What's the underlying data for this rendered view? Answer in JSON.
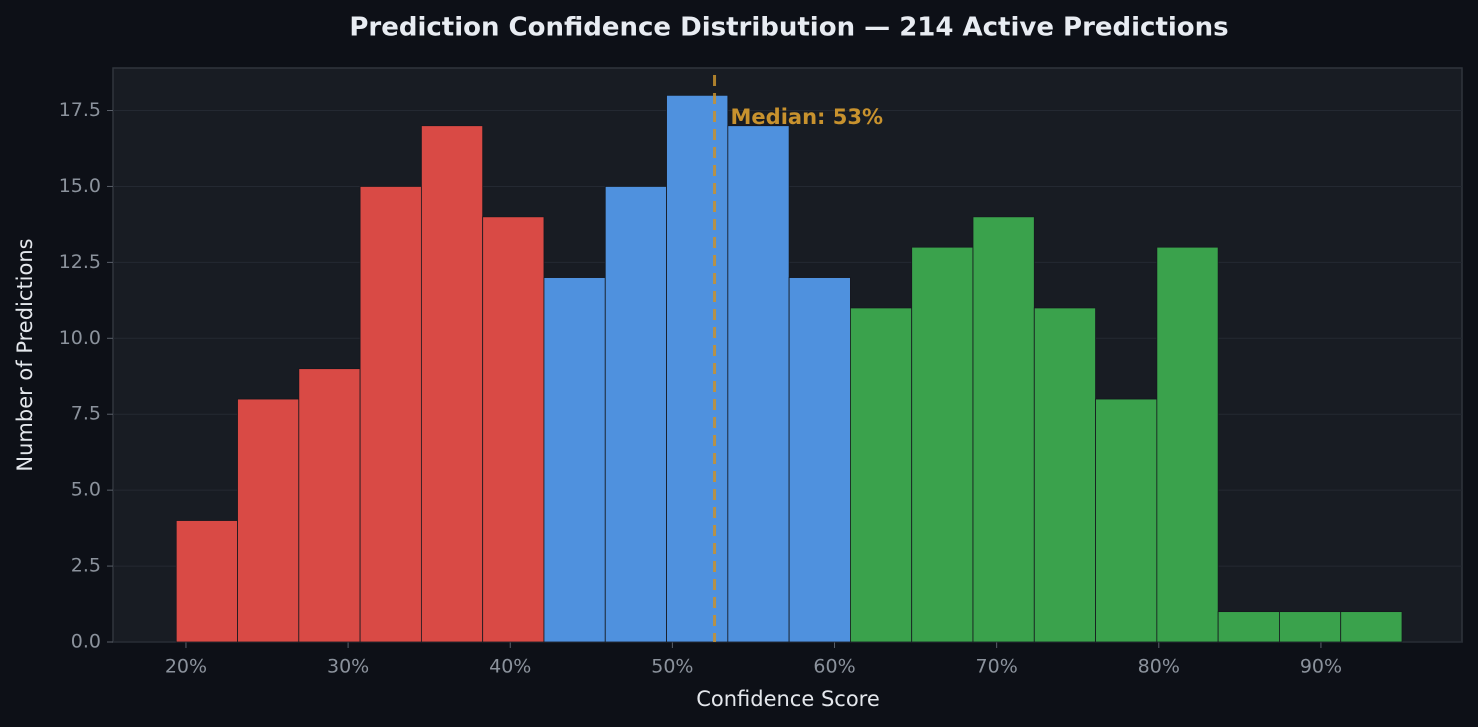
{
  "chart_data": {
    "type": "histogram",
    "title": "Prediction Confidence Distribution — 214 Active Predictions",
    "x_label": "Confidence Score",
    "y_label": "Number of Predictions",
    "bins": [
      19.4,
      23.18,
      26.96,
      30.74,
      34.52,
      38.3,
      42.08,
      45.86,
      49.64,
      53.42,
      57.2,
      60.98,
      64.76,
      68.54,
      72.32,
      76.1,
      79.88,
      83.66,
      87.44,
      91.22,
      95.0
    ],
    "values": [
      4,
      8,
      9,
      15,
      17,
      14,
      12,
      15,
      18,
      17,
      12,
      11,
      13,
      14,
      11,
      8,
      13,
      1,
      1,
      1
    ],
    "bar_colors": [
      "#d94a45",
      "#d94a45",
      "#d94a45",
      "#d94a45",
      "#d94a45",
      "#d94a45",
      "#4f91de",
      "#4f91de",
      "#4f91de",
      "#4f91de",
      "#4f91de",
      "#3aa24c",
      "#3aa24c",
      "#3aa24c",
      "#3aa24c",
      "#3aa24c",
      "#3aa24c",
      "#3aa24c",
      "#3aa24c",
      "#3aa24c"
    ],
    "median": {
      "value": 52.6,
      "label": "Median: 53%",
      "color": "#c8922e"
    },
    "xlim": [
      15.5,
      98.7
    ],
    "ylim": [
      0,
      18.9
    ],
    "xticks": [
      {
        "value": 20,
        "label": "20%"
      },
      {
        "value": 30,
        "label": "30%"
      },
      {
        "value": 40,
        "label": "40%"
      },
      {
        "value": 50,
        "label": "50%"
      },
      {
        "value": 60,
        "label": "60%"
      },
      {
        "value": 70,
        "label": "70%"
      },
      {
        "value": 80,
        "label": "80%"
      },
      {
        "value": 90,
        "label": "90%"
      }
    ],
    "yticks": [
      {
        "value": 0,
        "label": "0.0"
      },
      2.5,
      {
        "value": 5,
        "label": "5.0"
      },
      7.5,
      {
        "value": 10,
        "label": "10.0"
      },
      12.5,
      {
        "value": 15,
        "label": "15.0"
      },
      17.5
    ],
    "grid": true
  }
}
